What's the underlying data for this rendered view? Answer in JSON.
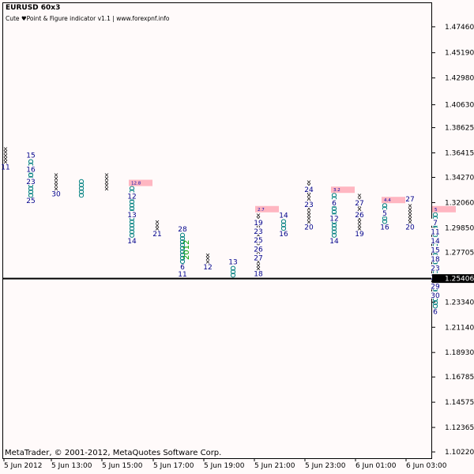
{
  "window": {
    "title": "EURUSD  60x3",
    "subtitle": "Cute  ♥Point & Figure indicator v1.1 | www.forexpnf.info",
    "copyright": "MetaTrader, © 2001-2012, MetaQuotes Software Corp.",
    "current_price": "1.25406"
  },
  "colors": {
    "background": "#fffafa",
    "x_symbol": "#000000",
    "o_symbol": "#008080",
    "numbers": "#0000a0",
    "target_box": "#ffb6c1",
    "green_text": "#00a000"
  },
  "chart_data": {
    "type": "point-and-figure",
    "symbol": "EURUSD",
    "timeframe": "60x3",
    "ylim": [
      1.0967,
      1.4953
    ],
    "price_ticks": [
      "1.47460",
      "1.45190",
      "1.42980",
      "1.40630",
      "1.38625",
      "1.36415",
      "1.34270",
      "1.32060",
      "1.29850",
      "1.27705",
      "1.25406",
      "1.23340",
      "1.21140",
      "1.18930",
      "1.16785",
      "1.14575",
      "1.12365",
      "1.10220"
    ],
    "time_ticks": [
      "5 Jun 2012",
      "5 Jun 13:00",
      "5 Jun 15:00",
      "5 Jun 17:00",
      "5 Jun 19:00",
      "5 Jun 21:00",
      "5 Jun 23:00",
      "6 Jun 01:00",
      "6 Jun 03:00"
    ],
    "columns": [
      {
        "type": "X",
        "from": 1.3565,
        "to": 1.368,
        "labels_below": [
          "11"
        ]
      },
      {
        "type": "O",
        "from": 1.327,
        "to": 1.3565,
        "labels_above": [
          "15"
        ],
        "labels_inside": [
          "16",
          "23"
        ],
        "labels_below": [
          "25"
        ]
      },
      {
        "type": "X",
        "from": 1.333,
        "to": 1.345,
        "labels_below": [
          "30"
        ]
      },
      {
        "type": "O",
        "from": 1.327,
        "to": 1.339
      },
      {
        "type": "X",
        "from": 1.333,
        "to": 1.345
      },
      {
        "type": "O",
        "from": 1.292,
        "to": 1.333,
        "labels_inside": [
          "12",
          "13"
        ],
        "labels_below": [
          "14"
        ],
        "box": "12.8"
      },
      {
        "type": "X",
        "from": 1.298,
        "to": 1.304,
        "labels_below": [
          "21"
        ]
      },
      {
        "type": "O",
        "from": 1.269,
        "to": 1.292,
        "labels_above": [
          "28"
        ],
        "labels_below": [
          "6",
          "11"
        ],
        "green": "2012"
      },
      {
        "type": "X",
        "from": 1.269,
        "to": 1.275,
        "labels_below": [
          "12"
        ]
      },
      {
        "type": "O",
        "from": 1.257,
        "to": 1.263,
        "labels_above": [
          "13"
        ]
      },
      {
        "type": "X",
        "from": 1.263,
        "to": 1.31,
        "labels_inside": [
          "19",
          "23",
          "25",
          "26",
          "27"
        ],
        "labels_below": [
          "18"
        ],
        "box": "2.7"
      },
      {
        "type": "O",
        "from": 1.298,
        "to": 1.304,
        "labels_above": [
          "14"
        ],
        "labels_below": [
          "16"
        ]
      },
      {
        "type": "X",
        "from": 1.304,
        "to": 1.339,
        "labels_inside": [
          "24",
          "23"
        ],
        "labels_below": [
          "20"
        ]
      },
      {
        "type": "O",
        "from": 1.292,
        "to": 1.327,
        "labels_inside": [
          "6",
          "12"
        ],
        "labels_below": [
          "14"
        ],
        "box": "3.2"
      },
      {
        "type": "X",
        "from": 1.298,
        "to": 1.327,
        "labels_inside": [
          "27",
          "26"
        ],
        "labels_below": [
          "19"
        ]
      },
      {
        "type": "O",
        "from": 1.304,
        "to": 1.318,
        "labels_inside": [
          "5"
        ],
        "labels_below": [
          "16"
        ],
        "box": "4.4"
      },
      {
        "type": "X",
        "from": 1.304,
        "to": 1.318,
        "labels_above": [
          "27"
        ],
        "labels_below": [
          "20"
        ]
      },
      {
        "type": "O",
        "from": 1.23,
        "to": 1.31,
        "labels_inside": [
          "7",
          "11",
          "14",
          "15",
          "18",
          "23",
          "24",
          "29",
          "30"
        ],
        "labels_below": [
          "6"
        ],
        "box": "5"
      }
    ]
  }
}
